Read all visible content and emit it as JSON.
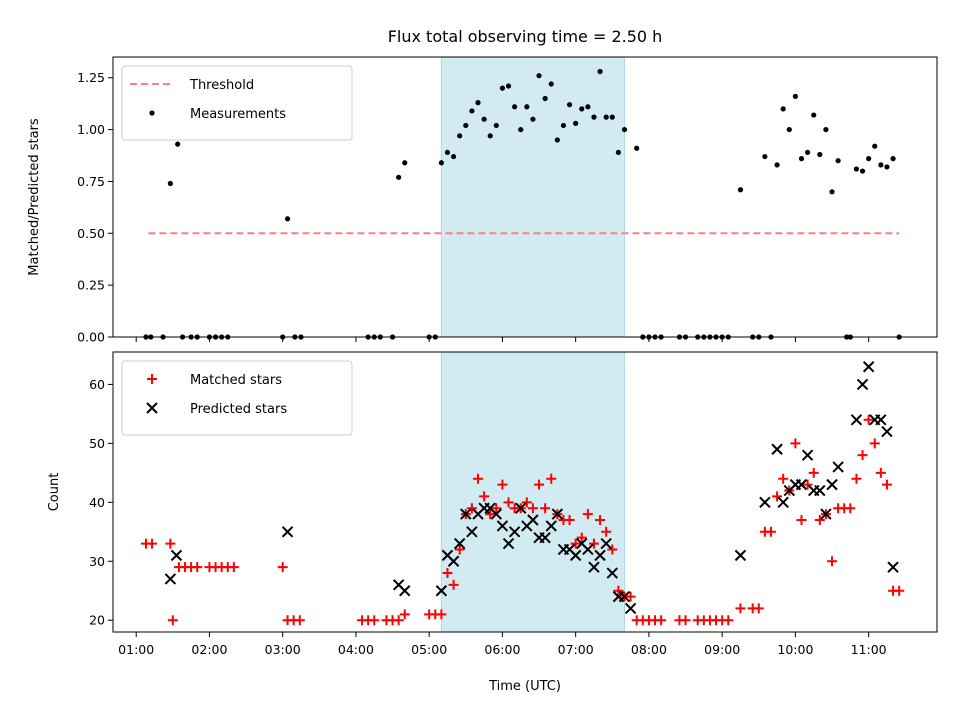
{
  "chart_data": [
    {
      "type": "scatter",
      "title": "Flux total observing time = 2.50 h",
      "xlabel": "",
      "ylabel": "Matched/Predicted stars",
      "xlim": [
        "00:41",
        "11:56"
      ],
      "ylim": [
        0,
        1.35
      ],
      "yticks": [
        0.0,
        0.25,
        0.5,
        0.75,
        1.0,
        1.25
      ],
      "ytick_labels": [
        "0.00",
        "0.25",
        "0.50",
        "0.75",
        "1.00",
        "1.25"
      ],
      "highlight_span": [
        "05:10",
        "07:40"
      ],
      "highlight_color": "#add8e6",
      "threshold": {
        "name": "Threshold",
        "value": 0.5,
        "x_range": [
          "01:10",
          "11:25"
        ],
        "color": "#ff7f7f"
      },
      "legend_position": "upper-left",
      "series": [
        {
          "name": "Measurements",
          "color": "#000000",
          "points": [
            [
              "01:08",
              0
            ],
            [
              "01:12",
              0
            ],
            [
              "01:22",
              0
            ],
            [
              "01:28",
              0.74
            ],
            [
              "01:34",
              0.93
            ],
            [
              "01:38",
              0
            ],
            [
              "01:45",
              0
            ],
            [
              "01:50",
              0
            ],
            [
              "02:00",
              0
            ],
            [
              "02:05",
              0
            ],
            [
              "02:10",
              0
            ],
            [
              "02:15",
              0
            ],
            [
              "03:00",
              0
            ],
            [
              "03:04",
              0.57
            ],
            [
              "03:10",
              0
            ],
            [
              "03:15",
              0
            ],
            [
              "04:10",
              0
            ],
            [
              "04:15",
              0
            ],
            [
              "04:20",
              0
            ],
            [
              "04:30",
              0
            ],
            [
              "04:35",
              0.77
            ],
            [
              "04:40",
              0.84
            ],
            [
              "05:00",
              0
            ],
            [
              "05:05",
              0
            ],
            [
              "05:10",
              0.84
            ],
            [
              "05:15",
              0.89
            ],
            [
              "05:20",
              0.87
            ],
            [
              "05:25",
              0.97
            ],
            [
              "05:30",
              1.02
            ],
            [
              "05:35",
              1.09
            ],
            [
              "05:40",
              1.13
            ],
            [
              "05:45",
              1.05
            ],
            [
              "05:50",
              0.97
            ],
            [
              "05:55",
              1.02
            ],
            [
              "06:00",
              1.2
            ],
            [
              "06:05",
              1.21
            ],
            [
              "06:10",
              1.11
            ],
            [
              "06:15",
              1.0
            ],
            [
              "06:20",
              1.11
            ],
            [
              "06:25",
              1.05
            ],
            [
              "06:30",
              1.26
            ],
            [
              "06:35",
              1.15
            ],
            [
              "06:40",
              1.22
            ],
            [
              "06:45",
              0.95
            ],
            [
              "06:50",
              1.02
            ],
            [
              "06:55",
              1.12
            ],
            [
              "07:00",
              1.03
            ],
            [
              "07:05",
              1.1
            ],
            [
              "07:10",
              1.11
            ],
            [
              "07:15",
              1.06
            ],
            [
              "07:20",
              1.28
            ],
            [
              "07:25",
              1.06
            ],
            [
              "07:30",
              1.06
            ],
            [
              "07:35",
              0.89
            ],
            [
              "07:40",
              1.0
            ],
            [
              "07:50",
              0.91
            ],
            [
              "07:55",
              0
            ],
            [
              "08:00",
              0
            ],
            [
              "08:05",
              0
            ],
            [
              "08:10",
              0
            ],
            [
              "08:25",
              0
            ],
            [
              "08:30",
              0
            ],
            [
              "08:40",
              0
            ],
            [
              "08:45",
              0
            ],
            [
              "08:50",
              0
            ],
            [
              "08:55",
              0
            ],
            [
              "09:00",
              0
            ],
            [
              "09:05",
              0
            ],
            [
              "09:15",
              0.71
            ],
            [
              "09:25",
              0
            ],
            [
              "09:30",
              0
            ],
            [
              "09:40",
              0
            ],
            [
              "09:35",
              0.87
            ],
            [
              "09:45",
              0.83
            ],
            [
              "09:50",
              1.1
            ],
            [
              "09:55",
              1.0
            ],
            [
              "10:00",
              1.16
            ],
            [
              "10:05",
              0.86
            ],
            [
              "10:10",
              0.89
            ],
            [
              "10:15",
              1.07
            ],
            [
              "10:20",
              0.88
            ],
            [
              "10:25",
              1.0
            ],
            [
              "10:30",
              0.7
            ],
            [
              "10:35",
              0.85
            ],
            [
              "10:42",
              0
            ],
            [
              "10:45",
              0
            ],
            [
              "10:50",
              0.81
            ],
            [
              "10:55",
              0.8
            ],
            [
              "11:00",
              0.86
            ],
            [
              "11:05",
              0.92
            ],
            [
              "11:10",
              0.83
            ],
            [
              "11:15",
              0.82
            ],
            [
              "11:20",
              0.86
            ],
            [
              "11:25",
              0
            ]
          ]
        }
      ]
    },
    {
      "type": "scatter",
      "title": "",
      "xlabel": "Time (UTC)",
      "ylabel": "Count",
      "xlim": [
        "00:41",
        "11:56"
      ],
      "ylim": [
        18,
        65.5
      ],
      "yticks": [
        20,
        30,
        40,
        50,
        60
      ],
      "ytick_labels": [
        "20",
        "30",
        "40",
        "50",
        "60"
      ],
      "xticks": [
        "01:00",
        "02:00",
        "03:00",
        "04:00",
        "05:00",
        "06:00",
        "07:00",
        "08:00",
        "09:00",
        "10:00",
        "11:00"
      ],
      "highlight_span": [
        "05:10",
        "07:40"
      ],
      "highlight_color": "#add8e6",
      "legend_position": "upper-left",
      "series": [
        {
          "name": "Matched stars",
          "marker": "plus",
          "color": "#ff0000",
          "points": [
            [
              "01:08",
              33
            ],
            [
              "01:13",
              33
            ],
            [
              "01:28",
              33
            ],
            [
              "01:30",
              20
            ],
            [
              "01:35",
              29
            ],
            [
              "01:40",
              29
            ],
            [
              "01:45",
              29
            ],
            [
              "01:50",
              29
            ],
            [
              "02:00",
              29
            ],
            [
              "02:05",
              29
            ],
            [
              "02:10",
              29
            ],
            [
              "02:15",
              29
            ],
            [
              "02:20",
              29
            ],
            [
              "03:00",
              29
            ],
            [
              "03:04",
              20
            ],
            [
              "03:09",
              20
            ],
            [
              "03:14",
              20
            ],
            [
              "04:05",
              20
            ],
            [
              "04:10",
              20
            ],
            [
              "04:15",
              20
            ],
            [
              "04:25",
              20
            ],
            [
              "04:30",
              20
            ],
            [
              "04:35",
              20
            ],
            [
              "04:40",
              21
            ],
            [
              "05:00",
              21
            ],
            [
              "05:05",
              21
            ],
            [
              "05:10",
              21
            ],
            [
              "05:15",
              28
            ],
            [
              "05:20",
              26
            ],
            [
              "05:25",
              32
            ],
            [
              "05:30",
              38
            ],
            [
              "05:35",
              39
            ],
            [
              "05:40",
              44
            ],
            [
              "05:45",
              41
            ],
            [
              "05:50",
              38
            ],
            [
              "05:55",
              39
            ],
            [
              "06:00",
              43
            ],
            [
              "06:05",
              40
            ],
            [
              "06:10",
              39
            ],
            [
              "06:15",
              39
            ],
            [
              "06:20",
              40
            ],
            [
              "06:25",
              39
            ],
            [
              "06:30",
              43
            ],
            [
              "06:35",
              39
            ],
            [
              "06:40",
              44
            ],
            [
              "06:45",
              38
            ],
            [
              "06:50",
              37
            ],
            [
              "06:55",
              37
            ],
            [
              "07:00",
              33
            ],
            [
              "07:05",
              34
            ],
            [
              "07:10",
              38
            ],
            [
              "07:15",
              33
            ],
            [
              "07:20",
              37
            ],
            [
              "07:25",
              35
            ],
            [
              "07:30",
              32
            ],
            [
              "07:35",
              25
            ],
            [
              "07:40",
              24
            ],
            [
              "07:45",
              24
            ],
            [
              "07:50",
              20
            ],
            [
              "07:55",
              20
            ],
            [
              "08:00",
              20
            ],
            [
              "08:05",
              20
            ],
            [
              "08:10",
              20
            ],
            [
              "08:25",
              20
            ],
            [
              "08:30",
              20
            ],
            [
              "08:40",
              20
            ],
            [
              "08:45",
              20
            ],
            [
              "08:50",
              20
            ],
            [
              "08:55",
              20
            ],
            [
              "09:00",
              20
            ],
            [
              "09:05",
              20
            ],
            [
              "09:15",
              22
            ],
            [
              "09:25",
              22
            ],
            [
              "09:30",
              22
            ],
            [
              "09:35",
              35
            ],
            [
              "09:40",
              35
            ],
            [
              "09:45",
              41
            ],
            [
              "09:50",
              44
            ],
            [
              "09:55",
              42
            ],
            [
              "10:00",
              50
            ],
            [
              "10:05",
              37
            ],
            [
              "10:10",
              43
            ],
            [
              "10:15",
              45
            ],
            [
              "10:20",
              37
            ],
            [
              "10:25",
              38
            ],
            [
              "10:30",
              30
            ],
            [
              "10:35",
              39
            ],
            [
              "10:40",
              39
            ],
            [
              "10:45",
              39
            ],
            [
              "10:50",
              44
            ],
            [
              "10:55",
              48
            ],
            [
              "11:00",
              54
            ],
            [
              "11:05",
              50
            ],
            [
              "11:10",
              45
            ],
            [
              "11:15",
              43
            ],
            [
              "11:20",
              25
            ],
            [
              "11:25",
              25
            ]
          ]
        },
        {
          "name": "Predicted stars",
          "marker": "x",
          "color": "#000000",
          "points": [
            [
              "01:28",
              27
            ],
            [
              "01:33",
              31
            ],
            [
              "03:04",
              35
            ],
            [
              "04:35",
              26
            ],
            [
              "04:40",
              25
            ],
            [
              "05:10",
              25
            ],
            [
              "05:15",
              31
            ],
            [
              "05:20",
              30
            ],
            [
              "05:25",
              33
            ],
            [
              "05:30",
              38
            ],
            [
              "05:35",
              35
            ],
            [
              "05:40",
              38
            ],
            [
              "05:45",
              39
            ],
            [
              "05:50",
              39
            ],
            [
              "05:55",
              38
            ],
            [
              "06:00",
              36
            ],
            [
              "06:05",
              33
            ],
            [
              "06:10",
              35
            ],
            [
              "06:15",
              39
            ],
            [
              "06:20",
              36
            ],
            [
              "06:25",
              37
            ],
            [
              "06:30",
              34
            ],
            [
              "06:35",
              34
            ],
            [
              "06:40",
              36
            ],
            [
              "06:45",
              38
            ],
            [
              "06:50",
              32
            ],
            [
              "06:55",
              32
            ],
            [
              "07:00",
              31
            ],
            [
              "07:05",
              33
            ],
            [
              "07:10",
              32
            ],
            [
              "07:15",
              29
            ],
            [
              "07:20",
              31
            ],
            [
              "07:25",
              33
            ],
            [
              "07:30",
              28
            ],
            [
              "07:35",
              24
            ],
            [
              "07:40",
              24
            ],
            [
              "07:45",
              22
            ],
            [
              "09:15",
              31
            ],
            [
              "09:35",
              40
            ],
            [
              "09:45",
              49
            ],
            [
              "09:50",
              40
            ],
            [
              "09:55",
              42
            ],
            [
              "10:00",
              43
            ],
            [
              "10:05",
              43
            ],
            [
              "10:10",
              48
            ],
            [
              "10:15",
              42
            ],
            [
              "10:20",
              42
            ],
            [
              "10:25",
              38
            ],
            [
              "10:30",
              43
            ],
            [
              "10:35",
              46
            ],
            [
              "10:50",
              54
            ],
            [
              "10:55",
              60
            ],
            [
              "11:00",
              63
            ],
            [
              "11:05",
              54
            ],
            [
              "11:10",
              54
            ],
            [
              "11:15",
              52
            ],
            [
              "11:20",
              29
            ]
          ]
        }
      ]
    }
  ]
}
